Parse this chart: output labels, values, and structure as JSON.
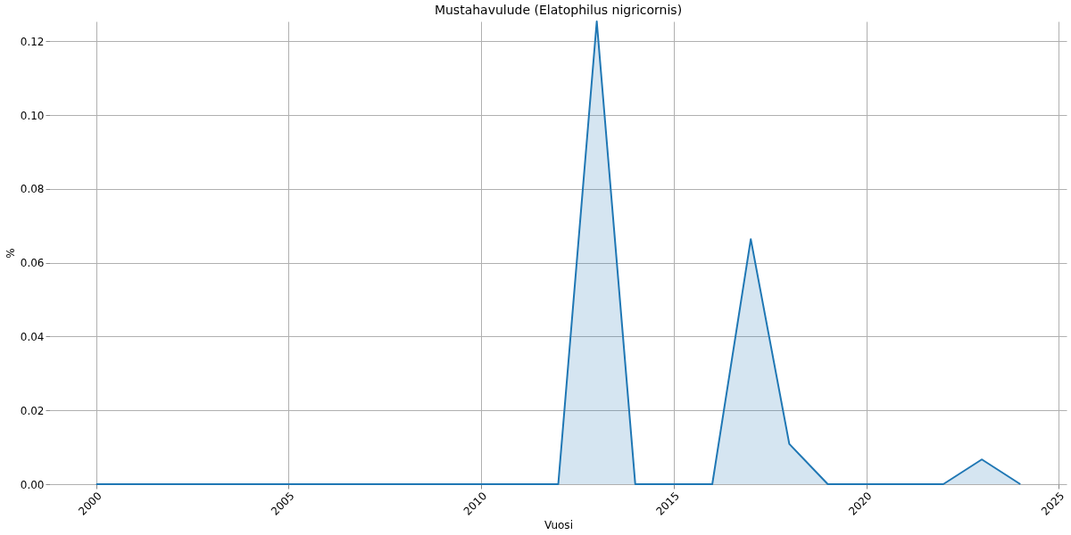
{
  "chart_data": {
    "type": "line",
    "title": "Mustahavulude (Elatophilus nigricornis)",
    "xlabel": "Vuosi",
    "ylabel": "%",
    "x": [
      2000,
      2001,
      2002,
      2003,
      2004,
      2005,
      2006,
      2007,
      2008,
      2009,
      2010,
      2011,
      2012,
      2013,
      2014,
      2015,
      2016,
      2017,
      2018,
      2019,
      2020,
      2021,
      2022,
      2023,
      2024
    ],
    "series": [
      {
        "type": "area",
        "color": "#1f77b4",
        "values": [
          0,
          0,
          0,
          0,
          0,
          0,
          0,
          0,
          0,
          0,
          0,
          0,
          0,
          0.1254,
          0,
          0,
          0,
          0.0664,
          0.0109,
          0,
          0,
          0,
          0,
          0.0067,
          0
        ]
      }
    ],
    "xlim": [
      1998.8,
      2025.2
    ],
    "xticks": [
      2000,
      2005,
      2010,
      2015,
      2020,
      2025
    ],
    "ylim": [
      0,
      0.1254
    ],
    "yticks": [
      {
        "value": 0,
        "label": "0.00"
      },
      0.02,
      0.04,
      0.06,
      0.08,
      {
        "value": 0.1,
        "label": "0.10"
      },
      0.12
    ],
    "grid": true,
    "marker": "none",
    "line_style": "solid"
  }
}
